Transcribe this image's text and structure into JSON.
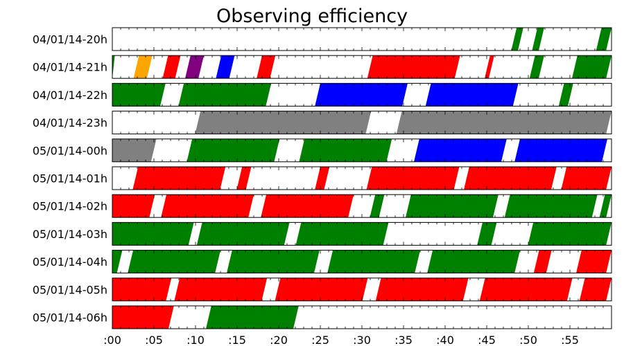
{
  "chart_data": {
    "type": "timeline",
    "title": "Observing efficiency",
    "x_unit": "minutes",
    "xlim": [
      0,
      60
    ],
    "x_ticks": [
      {
        "value": 0,
        "label": ":00"
      },
      {
        "value": 5,
        "label": ":05"
      },
      {
        "value": 10,
        "label": ":10"
      },
      {
        "value": 15,
        "label": ":15"
      },
      {
        "value": 20,
        "label": ":20"
      },
      {
        "value": 25,
        "label": ":25"
      },
      {
        "value": 30,
        "label": ":30"
      },
      {
        "value": 35,
        "label": ":35"
      },
      {
        "value": 40,
        "label": ":40"
      },
      {
        "value": 45,
        "label": ":45"
      },
      {
        "value": 50,
        "label": ":50"
      },
      {
        "value": 55,
        "label": ":55"
      }
    ],
    "colors": {
      "green": "#008000",
      "red": "#ff0000",
      "blue": "#0000ff",
      "gray": "#808080",
      "orange": "#ffa500",
      "purple": "#800080"
    },
    "rows": [
      {
        "label": "04/01/14-20h",
        "segments": [
          {
            "start": 48.6,
            "end": 49.4,
            "color": "green"
          },
          {
            "start": 51.1,
            "end": 51.9,
            "color": "green"
          },
          {
            "start": 58.8,
            "end": 60.0,
            "color": "green"
          }
        ]
      },
      {
        "label": "04/01/14-21h",
        "segments": [
          {
            "start": 0.0,
            "end": 0.3,
            "color": "green"
          },
          {
            "start": 3.2,
            "end": 4.8,
            "color": "orange"
          },
          {
            "start": 6.7,
            "end": 8.2,
            "color": "red"
          },
          {
            "start": 9.4,
            "end": 11.0,
            "color": "purple"
          },
          {
            "start": 13.1,
            "end": 14.7,
            "color": "blue"
          },
          {
            "start": 18.0,
            "end": 19.6,
            "color": "red"
          },
          {
            "start": 31.3,
            "end": 41.8,
            "color": "red"
          },
          {
            "start": 45.4,
            "end": 45.9,
            "color": "red"
          },
          {
            "start": 50.8,
            "end": 51.9,
            "color": "green"
          },
          {
            "start": 55.9,
            "end": 60.0,
            "color": "green"
          }
        ]
      },
      {
        "label": "04/01/14-22h",
        "segments": [
          {
            "start": 0.0,
            "end": 6.4,
            "color": "green"
          },
          {
            "start": 8.6,
            "end": 19.1,
            "color": "green"
          },
          {
            "start": 25.0,
            "end": 35.5,
            "color": "blue"
          },
          {
            "start": 38.3,
            "end": 48.8,
            "color": "blue"
          },
          {
            "start": 54.3,
            "end": 55.4,
            "color": "green"
          }
        ]
      },
      {
        "label": "04/01/14-23h",
        "segments": [
          {
            "start": 10.6,
            "end": 31.1,
            "color": "gray"
          },
          {
            "start": 34.8,
            "end": 60.0,
            "color": "gray"
          }
        ]
      },
      {
        "label": "05/01/14-00h",
        "segments": [
          {
            "start": 0.0,
            "end": 5.3,
            "color": "gray"
          },
          {
            "start": 9.6,
            "end": 20.1,
            "color": "green"
          },
          {
            "start": 23.1,
            "end": 33.6,
            "color": "green"
          },
          {
            "start": 36.9,
            "end": 47.4,
            "color": "blue"
          },
          {
            "start": 49.0,
            "end": 59.5,
            "color": "blue"
          }
        ]
      },
      {
        "label": "05/01/14-01h",
        "segments": [
          {
            "start": 3.1,
            "end": 13.6,
            "color": "red"
          },
          {
            "start": 15.6,
            "end": 16.7,
            "color": "red"
          },
          {
            "start": 25.0,
            "end": 26.1,
            "color": "red"
          },
          {
            "start": 31.2,
            "end": 41.7,
            "color": "red"
          },
          {
            "start": 42.9,
            "end": 53.4,
            "color": "red"
          },
          {
            "start": 54.6,
            "end": 60.0,
            "color": "red"
          }
        ]
      },
      {
        "label": "05/01/14-02h",
        "segments": [
          {
            "start": 0.0,
            "end": 5.1,
            "color": "red"
          },
          {
            "start": 6.5,
            "end": 17.0,
            "color": "red"
          },
          {
            "start": 18.5,
            "end": 29.0,
            "color": "red"
          },
          {
            "start": 31.6,
            "end": 32.7,
            "color": "green"
          },
          {
            "start": 35.9,
            "end": 46.4,
            "color": "green"
          },
          {
            "start": 47.8,
            "end": 58.3,
            "color": "green"
          },
          {
            "start": 59.2,
            "end": 60.0,
            "color": "green"
          }
        ]
      },
      {
        "label": "05/01/14-03h",
        "segments": [
          {
            "start": 0.0,
            "end": 9.8,
            "color": "green"
          },
          {
            "start": 10.8,
            "end": 21.3,
            "color": "green"
          },
          {
            "start": 22.7,
            "end": 33.2,
            "color": "green"
          },
          {
            "start": 44.5,
            "end": 46.2,
            "color": "green"
          },
          {
            "start": 50.6,
            "end": 60.0,
            "color": "green"
          }
        ]
      },
      {
        "label": "05/01/14-04h",
        "segments": [
          {
            "start": 0.0,
            "end": 1.2,
            "color": "green"
          },
          {
            "start": 2.5,
            "end": 13.0,
            "color": "green"
          },
          {
            "start": 14.4,
            "end": 24.9,
            "color": "green"
          },
          {
            "start": 26.5,
            "end": 37.0,
            "color": "green"
          },
          {
            "start": 38.5,
            "end": 49.0,
            "color": "green"
          },
          {
            "start": 51.3,
            "end": 52.8,
            "color": "red"
          },
          {
            "start": 56.4,
            "end": 60.0,
            "color": "red"
          }
        ]
      },
      {
        "label": "05/01/14-05h",
        "segments": [
          {
            "start": 0.0,
            "end": 7.1,
            "color": "red"
          },
          {
            "start": 8.1,
            "end": 18.6,
            "color": "red"
          },
          {
            "start": 20.2,
            "end": 30.7,
            "color": "red"
          },
          {
            "start": 32.3,
            "end": 42.8,
            "color": "red"
          },
          {
            "start": 44.8,
            "end": 55.3,
            "color": "red"
          },
          {
            "start": 56.8,
            "end": 60.0,
            "color": "red"
          }
        ]
      },
      {
        "label": "05/01/14-06h",
        "segments": [
          {
            "start": 0.0,
            "end": 7.4,
            "color": "red"
          },
          {
            "start": 11.9,
            "end": 22.4,
            "color": "green"
          }
        ]
      }
    ]
  }
}
